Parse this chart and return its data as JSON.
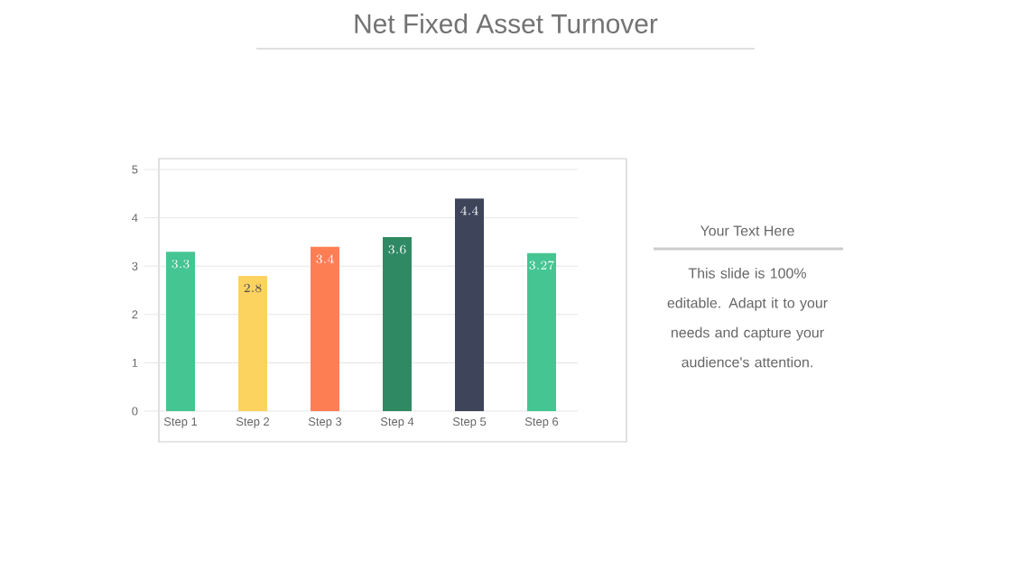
{
  "chart_data": {
    "type": "bar",
    "title": "Net Fixed Asset Turnover",
    "categories": [
      "Step 1",
      "Step 2",
      "Step 3",
      "Step 4",
      "Step 5",
      "Step 6"
    ],
    "values": [
      3.3,
      2.8,
      3.4,
      3.6,
      4.4,
      3.27
    ],
    "colors": [
      "#45c592",
      "#fdd35f",
      "#fe7e54",
      "#2f8a63",
      "#3e445a",
      "#45c592"
    ],
    "ylim": [
      0,
      5
    ],
    "yticks": [
      0,
      1,
      2,
      3,
      4,
      5
    ],
    "grid": "y",
    "data_labels": true,
    "annotations": [
      "Your Text Here",
      "This slide is 100% editable. Adapt it to your needs and capture your audience's attention."
    ]
  }
}
